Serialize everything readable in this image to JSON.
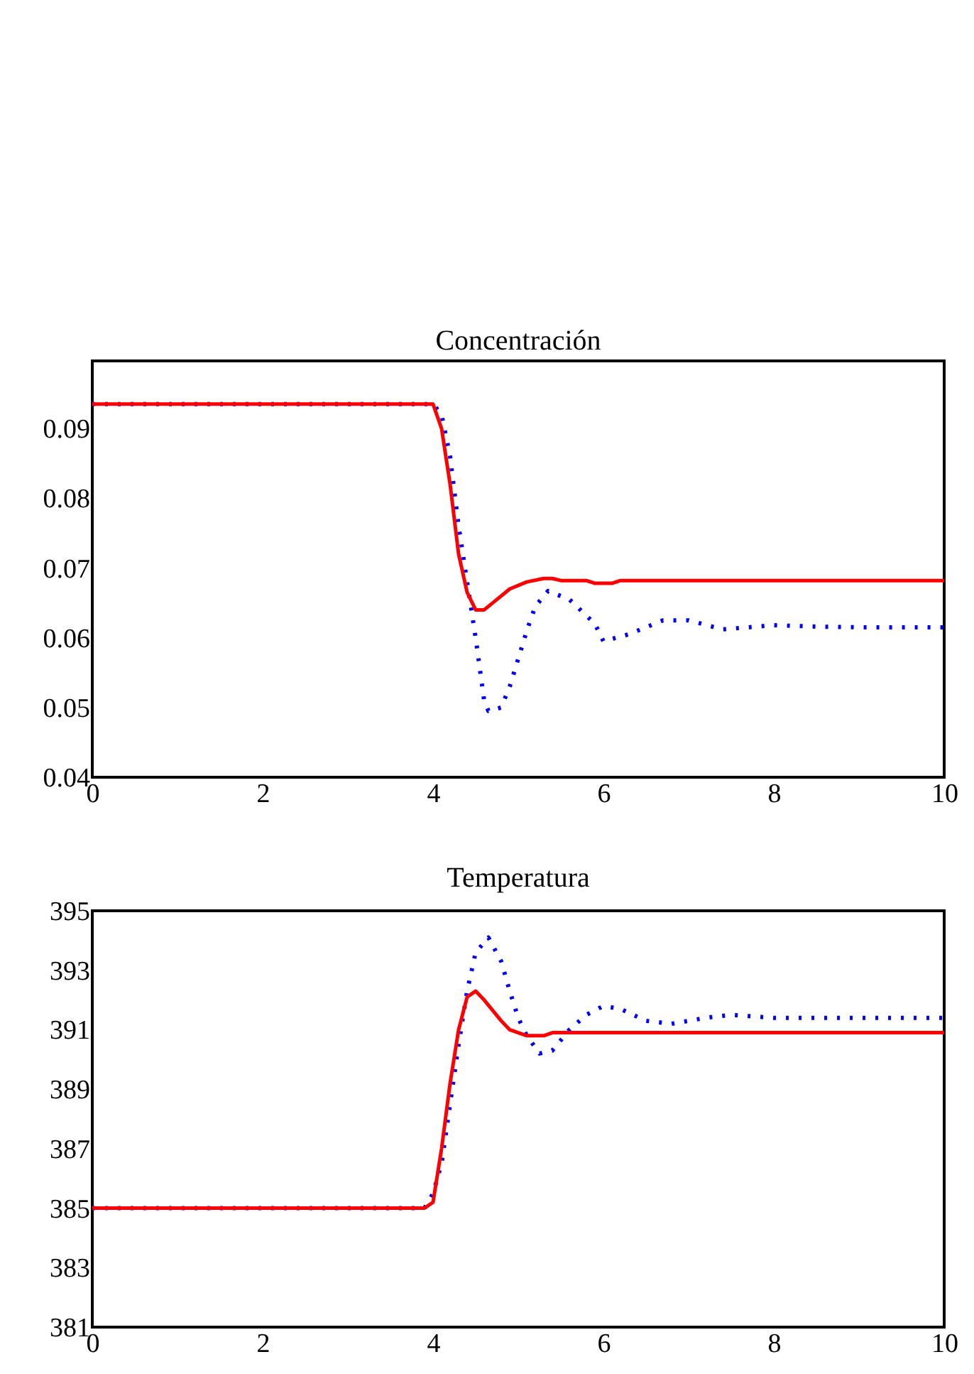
{
  "chart_data": [
    {
      "type": "line",
      "title": "Concentración",
      "xlim": [
        0,
        10
      ],
      "xticks": [
        0,
        2,
        4,
        6,
        8,
        10
      ],
      "ylim": [
        0.04,
        0.0997
      ],
      "yticks": [
        0.04,
        0.05,
        0.06,
        0.07,
        0.08,
        0.09
      ],
      "grid": false,
      "series": [
        {
          "color": "#0000ff",
          "line_style": "dotted",
          "x": [
            0,
            4.0,
            4.1,
            4.2,
            4.3,
            4.4,
            4.5,
            4.6,
            4.65,
            4.8,
            4.9,
            5.0,
            5.1,
            5.2,
            5.35,
            5.6,
            5.9,
            6.0,
            6.3,
            6.5,
            6.7,
            7.0,
            7.4,
            8.0,
            8.5,
            9.0,
            10
          ],
          "values": [
            0.0935,
            0.0935,
            0.092,
            0.086,
            0.076,
            0.068,
            0.06,
            0.051,
            0.0495,
            0.05,
            0.053,
            0.057,
            0.061,
            0.0645,
            0.0667,
            0.0655,
            0.062,
            0.0595,
            0.0605,
            0.0615,
            0.0625,
            0.0625,
            0.0612,
            0.0618,
            0.0616,
            0.0615,
            0.0615
          ]
        },
        {
          "color": "#ff0000",
          "line_style": "solid",
          "x": [
            0,
            4.0,
            4.1,
            4.2,
            4.3,
            4.4,
            4.5,
            4.6,
            4.7,
            4.9,
            5.1,
            5.3,
            5.4,
            5.5,
            5.8,
            5.9,
            6.1,
            6.2,
            10
          ],
          "values": [
            0.0935,
            0.0935,
            0.09,
            0.082,
            0.072,
            0.0665,
            0.064,
            0.064,
            0.065,
            0.067,
            0.068,
            0.0685,
            0.0685,
            0.0682,
            0.0682,
            0.0678,
            0.0678,
            0.0682,
            0.0682
          ]
        }
      ]
    },
    {
      "type": "line",
      "title": "Temperatura",
      "xlim": [
        0,
        10
      ],
      "xticks": [
        0,
        2,
        4,
        6,
        8,
        10
      ],
      "ylim": [
        381,
        395
      ],
      "yticks": [
        381,
        383,
        385,
        387,
        389,
        391,
        393,
        395
      ],
      "grid": false,
      "series": [
        {
          "color": "#0000ff",
          "line_style": "dotted",
          "x": [
            0,
            3.9,
            4.0,
            4.1,
            4.2,
            4.3,
            4.4,
            4.5,
            4.65,
            4.8,
            4.9,
            5.0,
            5.1,
            5.25,
            5.4,
            5.6,
            5.8,
            6.0,
            6.2,
            6.5,
            6.8,
            7.2,
            7.5,
            8,
            10
          ],
          "values": [
            385,
            385,
            385.5,
            386.5,
            388.5,
            390.5,
            392.3,
            393.6,
            394.1,
            393.3,
            392.3,
            391.4,
            390.8,
            390.2,
            390.3,
            391.0,
            391.5,
            391.8,
            391.7,
            391.3,
            391.2,
            391.4,
            391.5,
            391.4,
            391.4
          ]
        },
        {
          "color": "#ff0000",
          "line_style": "solid",
          "x": [
            0,
            3.9,
            4.0,
            4.1,
            4.2,
            4.3,
            4.4,
            4.5,
            4.6,
            4.8,
            4.9,
            5.1,
            5.3,
            5.4,
            10
          ],
          "values": [
            385,
            385,
            385.2,
            387,
            389.2,
            391,
            392.1,
            392.3,
            392.0,
            391.3,
            391.0,
            390.8,
            390.8,
            390.9,
            390.9
          ]
        }
      ]
    }
  ]
}
